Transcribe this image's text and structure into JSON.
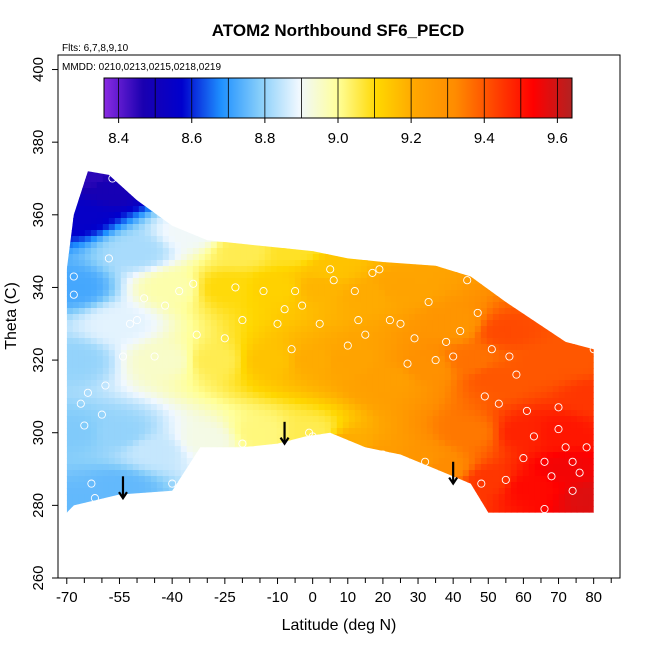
{
  "chart_data": {
    "type": "heatmap",
    "title": "ATOM2 Northbound SF6_PECD",
    "flights_label": "Flts: 6,7,8,9,10",
    "dates_label": "MMDD: 0210,0213,0215,0218,0219",
    "xlabel": "Latitude (deg N)",
    "ylabel": "Theta (C)",
    "xlim": [
      -70,
      85
    ],
    "ylim": [
      260,
      400
    ],
    "x_tick_labels": [
      "-70",
      "-55",
      "-40",
      "-25",
      "-10",
      "0",
      "10",
      "20",
      "30",
      "40",
      "50",
      "60",
      "70",
      "80"
    ],
    "x_tick_values": [
      -70,
      -55,
      -40,
      -25,
      -10,
      0,
      10,
      20,
      30,
      40,
      50,
      60,
      70,
      80
    ],
    "x_minor_ticks": [
      -65,
      -60,
      -50,
      -45,
      -35,
      -30,
      -20,
      -15,
      -5,
      5,
      15,
      25,
      35,
      45,
      55,
      65,
      75,
      85
    ],
    "y_tick_labels": [
      "260",
      "280",
      "300",
      "320",
      "340",
      "360",
      "380",
      "400"
    ],
    "y_tick_values": [
      260,
      280,
      300,
      320,
      340,
      360,
      380,
      400
    ],
    "colorbar": {
      "range": [
        8.36,
        9.64
      ],
      "tick_labels": [
        "8.4",
        "8.6",
        "8.8",
        "9.0",
        "9.2",
        "9.4",
        "9.6"
      ],
      "tick_values": [
        8.4,
        8.6,
        8.8,
        9.0,
        9.2,
        9.4,
        9.6
      ],
      "colors": [
        "#8a2be2",
        "#1a00b0",
        "#0000cd",
        "#1e90ff",
        "#87cefa",
        "#f0f8ff",
        "#ffff99",
        "#ffd700",
        "#ffa500",
        "#ff8c00",
        "#ff4500",
        "#ff0000",
        "#b22222"
      ]
    },
    "field_points": [
      [
        -68,
        280,
        8.75
      ],
      [
        -68,
        300,
        8.78
      ],
      [
        -68,
        320,
        8.8
      ],
      [
        -68,
        340,
        8.72
      ],
      [
        -67,
        360,
        8.55
      ],
      [
        -62,
        370,
        8.45
      ],
      [
        -58,
        368,
        8.48
      ],
      [
        -55,
        285,
        8.75
      ],
      [
        -55,
        300,
        8.8
      ],
      [
        -55,
        330,
        8.88
      ],
      [
        -50,
        350,
        8.82
      ],
      [
        -45,
        295,
        8.85
      ],
      [
        -42,
        320,
        8.95
      ],
      [
        -40,
        340,
        8.98
      ],
      [
        -35,
        355,
        8.9
      ],
      [
        -30,
        298,
        8.92
      ],
      [
        -28,
        320,
        9.05
      ],
      [
        -25,
        340,
        9.1
      ],
      [
        -20,
        350,
        9.05
      ],
      [
        -15,
        300,
        9.02
      ],
      [
        -12,
        320,
        9.15
      ],
      [
        -10,
        340,
        9.12
      ],
      [
        -5,
        350,
        9.08
      ],
      [
        0,
        300,
        9.05
      ],
      [
        0,
        320,
        9.2
      ],
      [
        2,
        340,
        9.18
      ],
      [
        5,
        345,
        9.15
      ],
      [
        10,
        297,
        9.2
      ],
      [
        10,
        320,
        9.22
      ],
      [
        15,
        338,
        9.2
      ],
      [
        20,
        293,
        9.25
      ],
      [
        22,
        315,
        9.24
      ],
      [
        25,
        340,
        9.22
      ],
      [
        30,
        292,
        9.28
      ],
      [
        32,
        318,
        9.3
      ],
      [
        38,
        290,
        9.32
      ],
      [
        40,
        330,
        9.28
      ],
      [
        45,
        300,
        9.35
      ],
      [
        45,
        320,
        9.36
      ],
      [
        50,
        287,
        9.45
      ],
      [
        52,
        315,
        9.4
      ],
      [
        55,
        328,
        9.42
      ],
      [
        60,
        300,
        9.48
      ],
      [
        62,
        285,
        9.52
      ],
      [
        65,
        318,
        9.4
      ],
      [
        70,
        300,
        9.5
      ],
      [
        72,
        290,
        9.55
      ],
      [
        75,
        320,
        9.4
      ],
      [
        80,
        282,
        9.58
      ],
      [
        80,
        310,
        9.45
      ]
    ],
    "observations": [
      [
        -68,
        343
      ],
      [
        -68,
        338
      ],
      [
        -66,
        308
      ],
      [
        -65,
        302
      ],
      [
        -64,
        311
      ],
      [
        -63,
        286
      ],
      [
        -62,
        282
      ],
      [
        -60,
        305
      ],
      [
        -59,
        313
      ],
      [
        -57,
        370
      ],
      [
        -58,
        348
      ],
      [
        -54,
        321
      ],
      [
        -52,
        330
      ],
      [
        -50,
        331
      ],
      [
        -48,
        337
      ],
      [
        -45,
        321
      ],
      [
        -42,
        335
      ],
      [
        -38,
        339
      ],
      [
        -34,
        341
      ],
      [
        -33,
        327
      ],
      [
        -25,
        326
      ],
      [
        -22,
        340
      ],
      [
        -20,
        331
      ],
      [
        -14,
        339
      ],
      [
        -10,
        330
      ],
      [
        -8,
        334
      ],
      [
        -6,
        323
      ],
      [
        -5,
        339
      ],
      [
        -3,
        335
      ],
      [
        -1,
        300
      ],
      [
        2,
        330
      ],
      [
        5,
        345
      ],
      [
        6,
        342
      ],
      [
        10,
        324
      ],
      [
        12,
        339
      ],
      [
        13,
        331
      ],
      [
        15,
        327
      ],
      [
        17,
        344
      ],
      [
        19,
        345
      ],
      [
        22,
        331
      ],
      [
        25,
        330
      ],
      [
        27,
        319
      ],
      [
        29,
        326
      ],
      [
        33,
        336
      ],
      [
        35,
        320
      ],
      [
        38,
        325
      ],
      [
        40,
        321
      ],
      [
        42,
        328
      ],
      [
        44,
        342
      ],
      [
        47,
        333
      ],
      [
        49,
        310
      ],
      [
        51,
        323
      ],
      [
        53,
        308
      ],
      [
        56,
        321
      ],
      [
        58,
        316
      ],
      [
        61,
        306
      ],
      [
        63,
        299
      ],
      [
        66,
        292
      ],
      [
        68,
        288
      ],
      [
        70,
        307
      ],
      [
        72,
        296
      ],
      [
        74,
        284
      ],
      [
        78,
        296
      ],
      [
        80,
        323
      ],
      [
        -40,
        286
      ],
      [
        -20,
        297
      ],
      [
        0,
        299
      ],
      [
        10,
        296
      ],
      [
        20,
        294
      ],
      [
        32,
        292
      ],
      [
        48,
        286
      ],
      [
        55,
        287
      ],
      [
        60,
        293
      ],
      [
        66,
        279
      ],
      [
        70,
        301
      ],
      [
        74,
        292
      ],
      [
        76,
        289
      ],
      [
        82,
        299
      ]
    ],
    "region_outline": [
      [
        -70,
        278
      ],
      [
        -68,
        280
      ],
      [
        -55,
        283
      ],
      [
        -40,
        284
      ],
      [
        -32,
        296
      ],
      [
        -20,
        296
      ],
      [
        -10,
        297
      ],
      [
        -2,
        299
      ],
      [
        5,
        300
      ],
      [
        15,
        296
      ],
      [
        25,
        294
      ],
      [
        35,
        290
      ],
      [
        45,
        286
      ],
      [
        50,
        278
      ],
      [
        60,
        278
      ],
      [
        80,
        278
      ],
      [
        80,
        323
      ],
      [
        72,
        325
      ],
      [
        55,
        336
      ],
      [
        45,
        343
      ],
      [
        35,
        346
      ],
      [
        20,
        347
      ],
      [
        10,
        348
      ],
      [
        0,
        350
      ],
      [
        -10,
        351
      ],
      [
        -20,
        352
      ],
      [
        -30,
        353
      ],
      [
        -40,
        357
      ],
      [
        -50,
        364
      ],
      [
        -58,
        371
      ],
      [
        -64,
        372
      ],
      [
        -68,
        360
      ],
      [
        -70,
        345
      ],
      [
        -70,
        278
      ]
    ],
    "arrows": [
      {
        "x": -54,
        "y_top": 288,
        "y_bottom": 282
      },
      {
        "x": -8,
        "y_top": 303,
        "y_bottom": 297
      },
      {
        "x": 40,
        "y_top": 292,
        "y_bottom": 286
      }
    ]
  }
}
